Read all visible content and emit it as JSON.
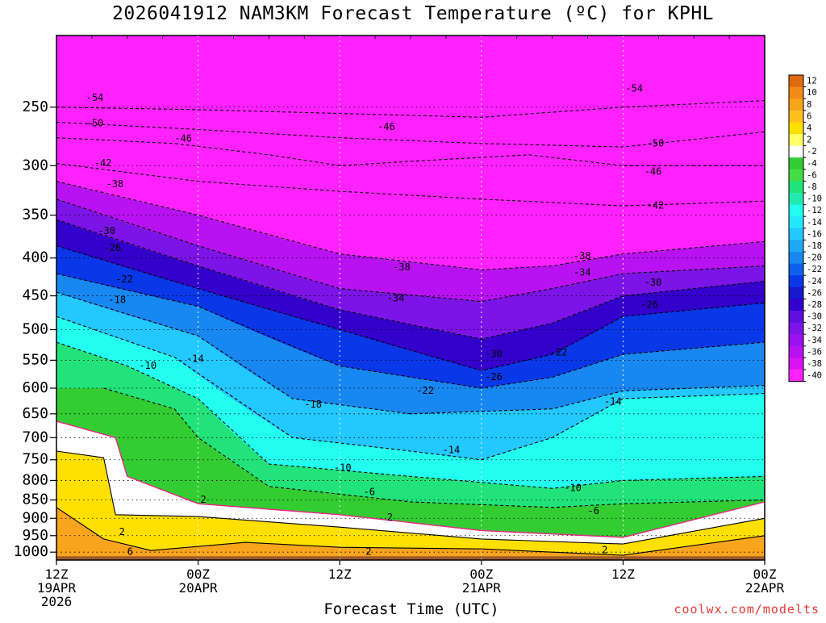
{
  "title": "2026041912 NAM3KM Forecast Temperature (ºC) for KPHL",
  "credit": "coolwx.com/modelts",
  "chart_data": {
    "type": "heatmap",
    "title": "2026041912 NAM3KM Forecast Temperature (ºC) for KPHL",
    "xlabel": "Forecast Time (UTC)",
    "ylabel": "",
    "x_ticks": [
      {
        "lines": [
          "12Z",
          "19APR",
          "2026"
        ],
        "hour": 0
      },
      {
        "lines": [
          "00Z",
          "20APR"
        ],
        "hour": 12
      },
      {
        "lines": [
          "12Z"
        ],
        "hour": 24
      },
      {
        "lines": [
          "00Z",
          "21APR"
        ],
        "hour": 36
      },
      {
        "lines": [
          "12Z"
        ],
        "hour": 48
      },
      {
        "lines": [
          "00Z",
          "22APR"
        ],
        "hour": 60
      }
    ],
    "xlim": [
      0,
      60
    ],
    "y_ticks": [
      250,
      300,
      350,
      400,
      450,
      500,
      550,
      600,
      650,
      700,
      750,
      800,
      850,
      900,
      950,
      1000
    ],
    "ylim": [
      200,
      1025
    ],
    "colorbar": {
      "labels": [
        "12",
        "10",
        "8",
        "6",
        "4",
        "2",
        "-2",
        "-4",
        "-6",
        "-8",
        "-10",
        "-12",
        "-14",
        "-16",
        "-18",
        "-20",
        "-22",
        "-24",
        "-26",
        "-28",
        "-30",
        "-32",
        "-34",
        "-36",
        "-38",
        "-40"
      ],
      "colors": [
        "#e06a10",
        "#f28a18",
        "#f8a41c",
        "#fcc020",
        "#ffe000",
        "#ffff66",
        "#ffffff",
        "#33cc33",
        "#44dd44",
        "#22e37a",
        "#22ebb0",
        "#22ffee",
        "#22e8ff",
        "#22c8ff",
        "#1ea8f5",
        "#1888f0",
        "#1060f0",
        "#0a38e8",
        "#1818cc",
        "#3300cc",
        "#5e10e0",
        "#7c14e8",
        "#9a12f0",
        "#b812f2",
        "#d814f4",
        "#ff22ff"
      ]
    },
    "isotherm_levels": [
      6,
      2,
      -2,
      -6,
      -10,
      -14,
      -18,
      -22,
      -26,
      -30,
      -34,
      -38,
      -42,
      -46,
      -50,
      -54
    ],
    "isotherms": [
      {
        "t": -54,
        "points": [
          [
            0,
            250
          ],
          [
            12,
            252
          ],
          [
            24,
            255
          ],
          [
            36,
            258
          ],
          [
            48,
            250
          ],
          [
            60,
            245
          ]
        ],
        "labels": [
          [
            2.5,
            243
          ],
          [
            48.2,
            236
          ]
        ]
      },
      {
        "t": -50,
        "points": [
          [
            0,
            262
          ],
          [
            12,
            268
          ],
          [
            24,
            275
          ],
          [
            36,
            280
          ],
          [
            48,
            283
          ],
          [
            60,
            270
          ]
        ],
        "labels": [
          [
            2.5,
            263
          ],
          [
            50,
            280
          ]
        ]
      },
      {
        "t": -46,
        "points": [
          [
            0,
            275
          ],
          [
            10,
            280
          ],
          [
            18,
            290
          ],
          [
            24,
            300
          ],
          [
            30,
            296
          ],
          [
            40,
            290
          ],
          [
            48,
            300
          ],
          [
            60,
            300
          ]
        ],
        "labels": [
          [
            10,
            276
          ],
          [
            27.2,
            266
          ],
          [
            49.8,
            306
          ]
        ]
      },
      {
        "t": -42,
        "points": [
          [
            0,
            298
          ],
          [
            12,
            315
          ],
          [
            24,
            325
          ],
          [
            36,
            333
          ],
          [
            48,
            340
          ],
          [
            60,
            335
          ]
        ],
        "labels": [
          [
            3.2,
            298
          ],
          [
            50,
            340
          ]
        ]
      },
      {
        "t": -38,
        "points": [
          [
            0,
            315
          ],
          [
            12,
            350
          ],
          [
            24,
            395
          ],
          [
            36,
            415
          ],
          [
            42,
            410
          ],
          [
            48,
            395
          ],
          [
            60,
            380
          ]
        ],
        "labels": [
          [
            4.2,
            318
          ],
          [
            28.5,
            412
          ],
          [
            43.8,
            398
          ]
        ]
      },
      {
        "t": -34,
        "points": [
          [
            0,
            333
          ],
          [
            12,
            385
          ],
          [
            24,
            440
          ],
          [
            36,
            458
          ],
          [
            42,
            440
          ],
          [
            48,
            420
          ],
          [
            60,
            410
          ]
        ],
        "labels": [
          [
            28,
            454
          ],
          [
            43.8,
            419
          ]
        ]
      },
      {
        "t": -30,
        "points": [
          [
            0,
            355
          ],
          [
            12,
            410
          ],
          [
            24,
            470
          ],
          [
            36,
            515
          ],
          [
            42,
            490
          ],
          [
            48,
            450
          ],
          [
            60,
            430
          ]
        ],
        "labels": [
          [
            3.5,
            368
          ],
          [
            36.3,
            540
          ],
          [
            49.8,
            432
          ]
        ]
      },
      {
        "t": -26,
        "points": [
          [
            0,
            385
          ],
          [
            12,
            440
          ],
          [
            24,
            500
          ],
          [
            36,
            568
          ],
          [
            42,
            540
          ],
          [
            48,
            480
          ],
          [
            60,
            460
          ]
        ],
        "labels": [
          [
            4,
            388
          ],
          [
            36.3,
            580
          ],
          [
            49.5,
            463
          ]
        ]
      },
      {
        "t": -22,
        "points": [
          [
            0,
            420
          ],
          [
            12,
            465
          ],
          [
            24,
            560
          ],
          [
            36,
            600
          ],
          [
            42,
            580
          ],
          [
            48,
            540
          ],
          [
            60,
            520
          ]
        ],
        "labels": [
          [
            5,
            428
          ],
          [
            30.5,
            605
          ],
          [
            41.8,
            537
          ]
        ]
      },
      {
        "t": -18,
        "points": [
          [
            0,
            445
          ],
          [
            12,
            510
          ],
          [
            20,
            620
          ],
          [
            30,
            650
          ],
          [
            42,
            640
          ],
          [
            48,
            605
          ],
          [
            60,
            595
          ]
        ],
        "labels": [
          [
            4.4,
            456
          ],
          [
            21,
            632
          ]
        ]
      },
      {
        "t": -14,
        "points": [
          [
            0,
            480
          ],
          [
            10,
            545
          ],
          [
            20,
            700
          ],
          [
            30,
            730
          ],
          [
            36,
            750
          ],
          [
            42,
            700
          ],
          [
            48,
            620
          ],
          [
            60,
            610
          ]
        ],
        "labels": [
          [
            11,
            548
          ],
          [
            32.7,
            728
          ],
          [
            46.4,
            626
          ]
        ]
      },
      {
        "t": -10,
        "points": [
          [
            0,
            520
          ],
          [
            6,
            560
          ],
          [
            12,
            620
          ],
          [
            18,
            760
          ],
          [
            30,
            790
          ],
          [
            42,
            820
          ],
          [
            48,
            800
          ],
          [
            60,
            790
          ]
        ],
        "labels": [
          [
            7,
            560
          ],
          [
            23.5,
            770
          ],
          [
            43,
            820
          ]
        ]
      },
      {
        "t": -6,
        "points": [
          [
            4,
            600
          ],
          [
            10,
            640
          ],
          [
            12,
            700
          ],
          [
            18,
            815
          ],
          [
            30,
            855
          ],
          [
            42,
            870
          ],
          [
            48,
            860
          ],
          [
            60,
            850
          ]
        ],
        "labels": [
          [
            26,
            830
          ],
          [
            45,
            880
          ]
        ]
      },
      {
        "t": -2,
        "points": [
          [
            0,
            665
          ],
          [
            5,
            700
          ],
          [
            6,
            790
          ],
          [
            12,
            860
          ],
          [
            24,
            890
          ],
          [
            36,
            935
          ],
          [
            48,
            955
          ],
          [
            60,
            855
          ]
        ],
        "labels": []
      },
      {
        "t": 2,
        "points": [
          [
            0,
            730
          ],
          [
            4,
            745
          ],
          [
            5,
            890
          ],
          [
            12,
            895
          ],
          [
            24,
            925
          ],
          [
            36,
            960
          ],
          [
            48,
            975
          ],
          [
            60,
            900
          ]
        ],
        "labels": [
          [
            12.2,
            850
          ],
          [
            28,
            898
          ],
          [
            5.3,
            940
          ],
          [
            26.2,
            1000
          ],
          [
            46.2,
            995
          ]
        ]
      },
      {
        "t": 6,
        "points": [
          [
            0,
            870
          ],
          [
            4,
            960
          ],
          [
            8,
            995
          ],
          [
            16,
            970
          ],
          [
            24,
            985
          ],
          [
            36,
            990
          ],
          [
            48,
            1010
          ],
          [
            60,
            950
          ]
        ],
        "labels": [
          [
            6,
            1000
          ]
        ]
      }
    ]
  }
}
